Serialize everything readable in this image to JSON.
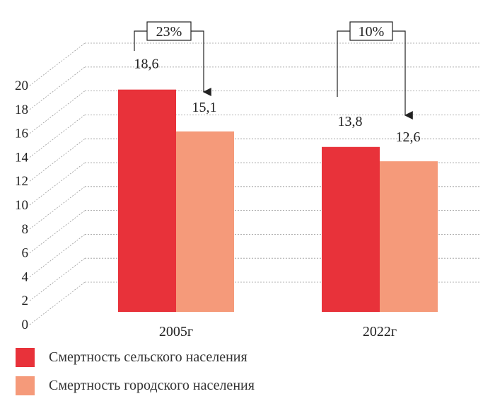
{
  "chart_data": {
    "type": "bar",
    "categories": [
      "2005г",
      "2022г"
    ],
    "series": [
      {
        "name": "Смертность сельского населения",
        "values": [
          18.6,
          13.8
        ],
        "labels": [
          "18,6",
          "13,8"
        ],
        "color": "#e8323a"
      },
      {
        "name": "Смертность городского населения",
        "values": [
          15.1,
          12.6
        ],
        "labels": [
          "15,1",
          "12,6"
        ],
        "color": "#f59a7a"
      }
    ],
    "yticks": [
      "0",
      "2",
      "4",
      "6",
      "8",
      "10",
      "12",
      "14",
      "16",
      "18",
      "20"
    ],
    "ylim": [
      0,
      20
    ],
    "grid": true,
    "legend_position": "bottom-left",
    "annotations": [
      {
        "category": "2005г",
        "text": "23%"
      },
      {
        "category": "2022г",
        "text": "10%"
      }
    ]
  }
}
